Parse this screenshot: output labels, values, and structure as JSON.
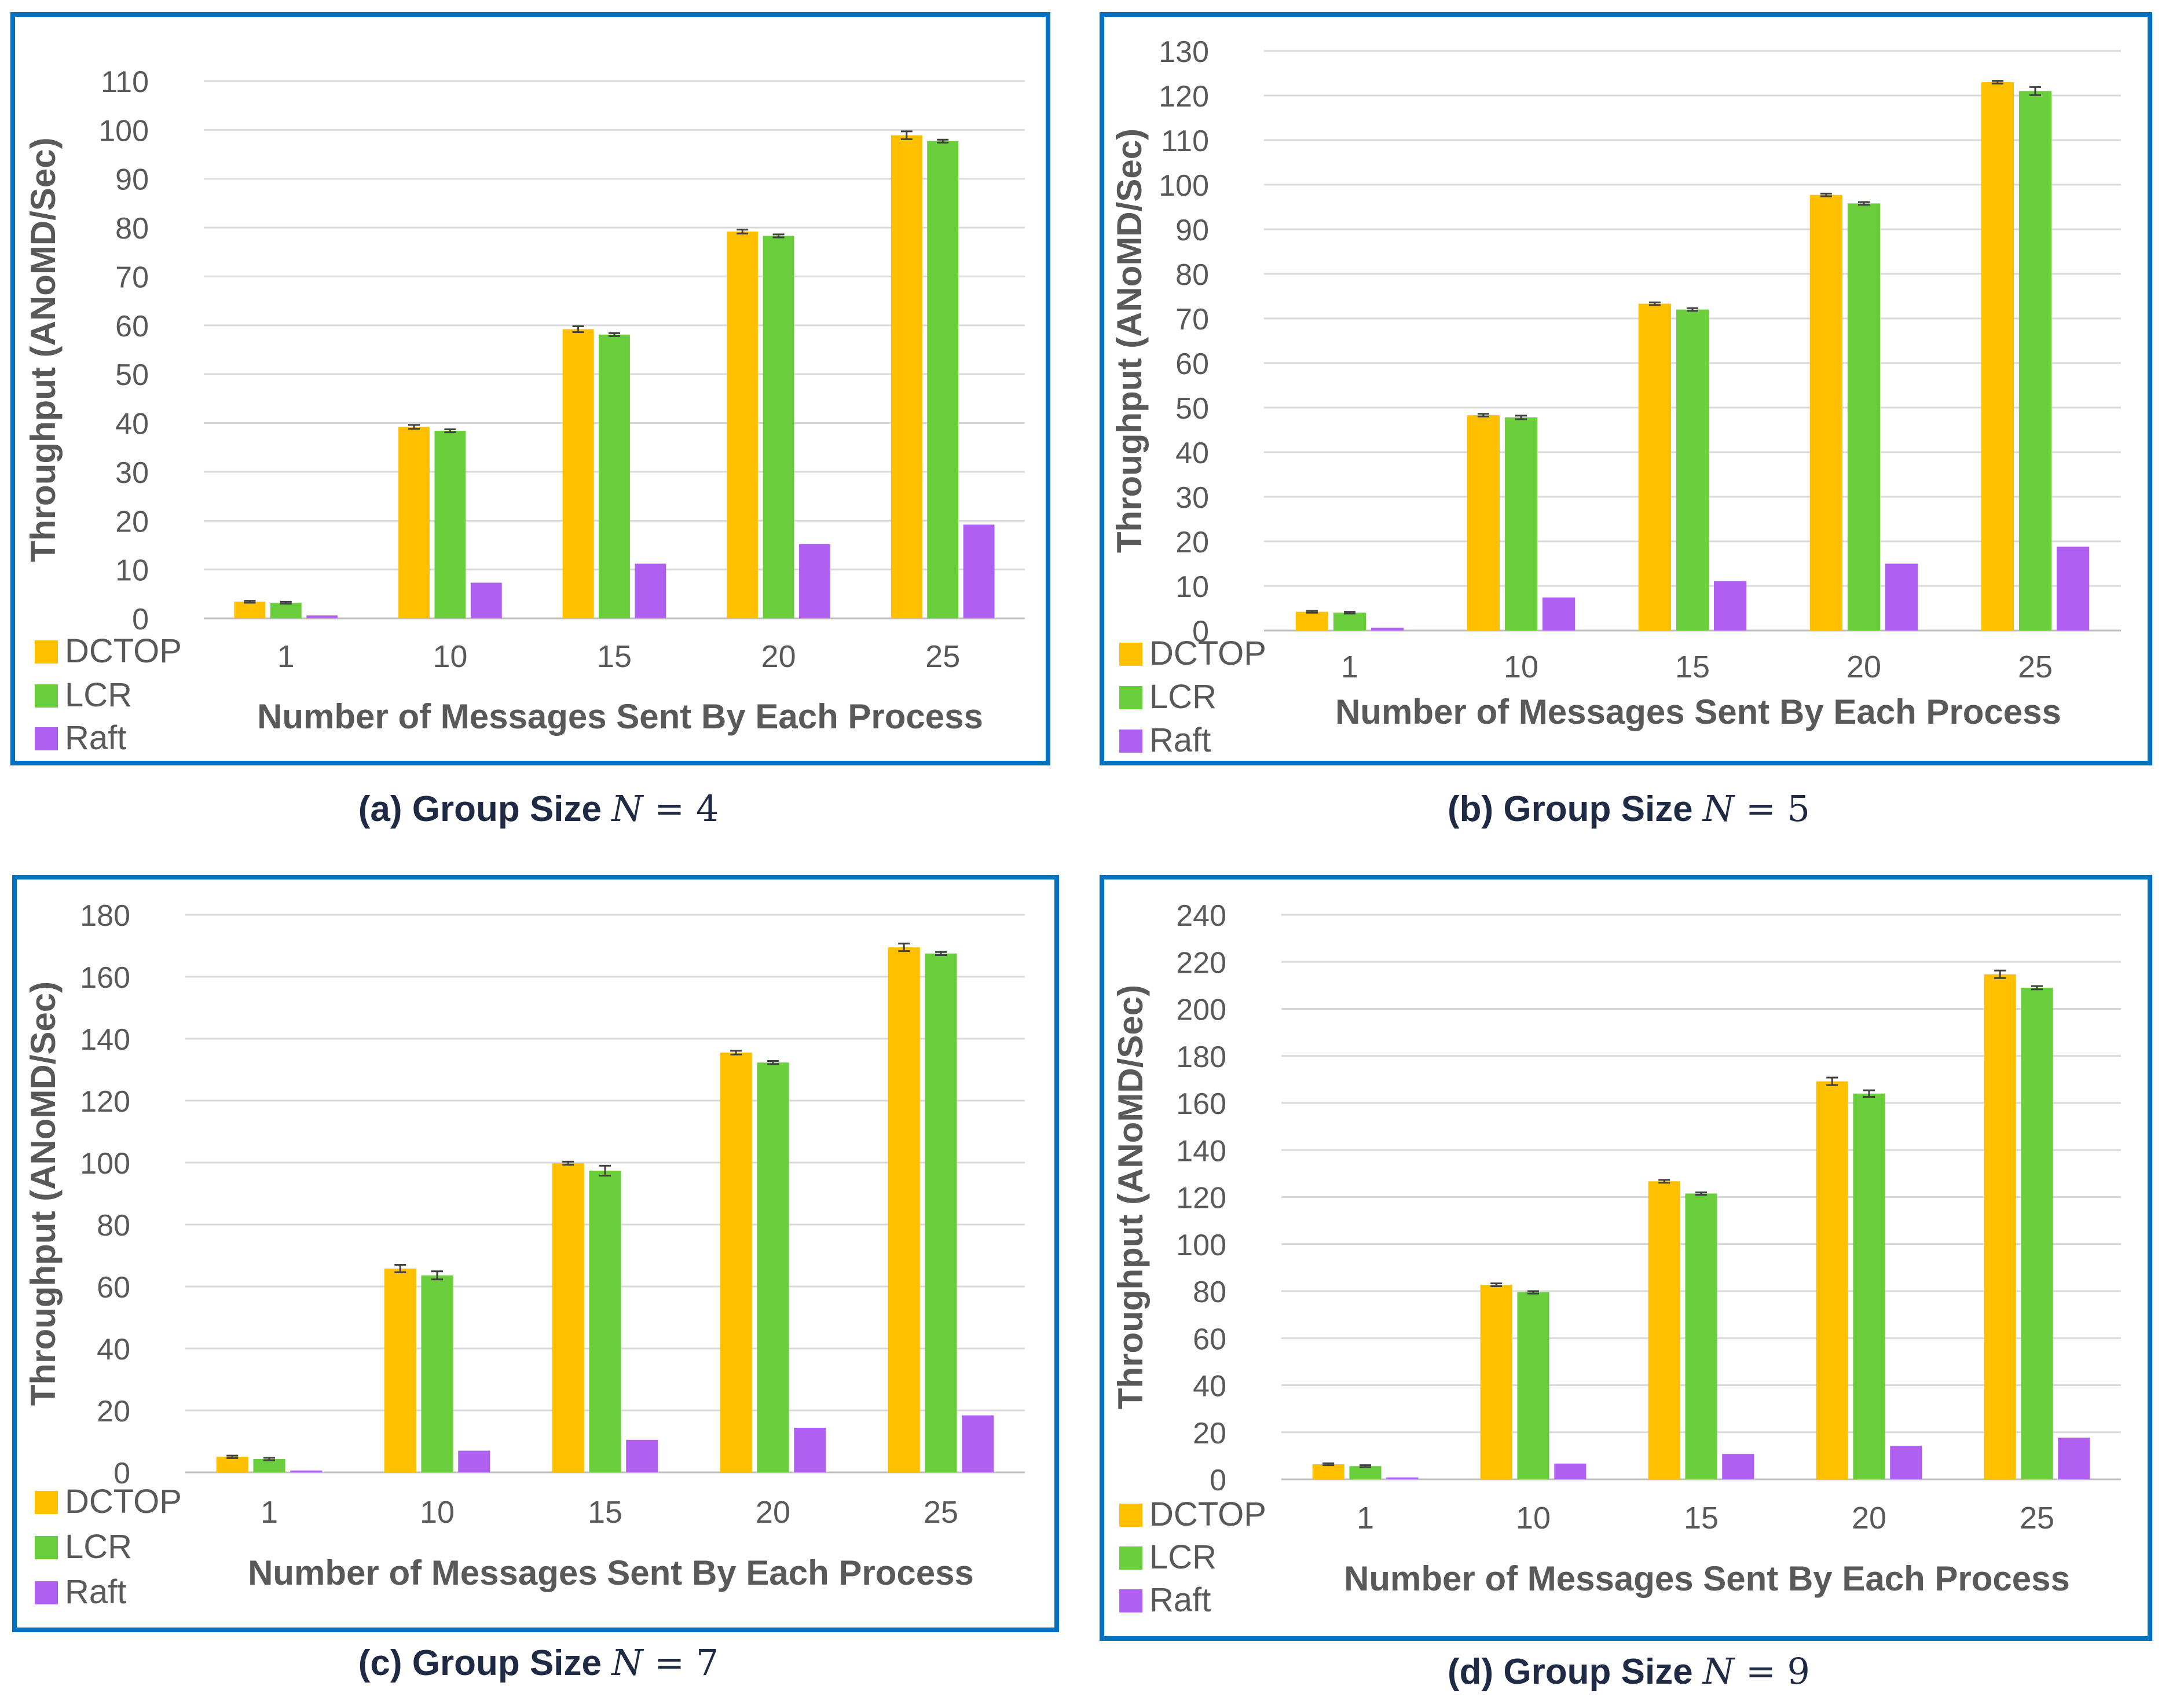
{
  "colors": {
    "DCTOP": "#FFC000",
    "LCR": "#6ACD3C",
    "Raft": "#B060F0",
    "border": "#0070C0",
    "grid": "#D9D9D9",
    "text": "#595959"
  },
  "chart_data": [
    {
      "type": "bar",
      "caption_prefix": "(a) Group Size ",
      "caption_var": "N",
      "caption_eq": " = ",
      "caption_num": "4",
      "xlabel": "Number of Messages Sent By Each Process",
      "ylabel": "Throughput (ANoMD/Sec)",
      "categories": [
        "1",
        "10",
        "15",
        "20",
        "25"
      ],
      "ylim": [
        0,
        110
      ],
      "yticks": [
        "0",
        "10",
        "20",
        "30",
        "40",
        "50",
        "60",
        "70",
        "80",
        "90",
        "100",
        "110"
      ],
      "yticks_values": [
        0,
        10,
        20,
        30,
        40,
        50,
        60,
        70,
        80,
        90,
        100,
        110
      ],
      "legend": [
        "DCTOP",
        "LCR",
        "Raft"
      ],
      "series": [
        {
          "name": "DCTOP",
          "values": [
            3.4,
            39.2,
            59.2,
            79.2,
            98.9
          ],
          "errors": [
            0.2,
            0.4,
            0.6,
            0.4,
            0.8
          ]
        },
        {
          "name": "LCR",
          "values": [
            3.2,
            38.4,
            58.1,
            78.3,
            97.7
          ],
          "errors": [
            0.2,
            0.3,
            0.3,
            0.3,
            0.3
          ]
        },
        {
          "name": "Raft",
          "values": [
            0.6,
            7.3,
            11.2,
            15.2,
            19.2
          ],
          "errors": [
            0,
            0,
            0,
            0,
            0
          ]
        }
      ]
    },
    {
      "type": "bar",
      "caption_prefix": "(b) Group Size ",
      "caption_var": "N",
      "caption_eq": " = ",
      "caption_num": "5",
      "xlabel": "Number of Messages Sent By Each Process",
      "ylabel": "Throughput (ANoMD/Sec)",
      "categories": [
        "1",
        "10",
        "15",
        "20",
        "25"
      ],
      "ylim": [
        0,
        130
      ],
      "yticks": [
        "0",
        "10",
        "20",
        "30",
        "40",
        "50",
        "60",
        "70",
        "80",
        "90",
        "100",
        "110",
        "120",
        "130"
      ],
      "yticks_values": [
        0,
        10,
        20,
        30,
        40,
        50,
        60,
        70,
        80,
        90,
        100,
        110,
        120,
        130
      ],
      "legend": [
        "DCTOP",
        "LCR",
        "Raft"
      ],
      "series": [
        {
          "name": "DCTOP",
          "values": [
            4.2,
            48.3,
            73.3,
            97.7,
            123.0
          ],
          "errors": [
            0.2,
            0.3,
            0.3,
            0.3,
            0.3
          ]
        },
        {
          "name": "LCR",
          "values": [
            4.0,
            47.8,
            72.0,
            95.8,
            121.0
          ],
          "errors": [
            0.2,
            0.4,
            0.3,
            0.3,
            0.9
          ]
        },
        {
          "name": "Raft",
          "values": [
            0.6,
            7.4,
            11.1,
            15.0,
            18.8
          ],
          "errors": [
            0,
            0,
            0,
            0,
            0
          ]
        }
      ]
    },
    {
      "type": "bar",
      "caption_prefix": "(c) Group Size ",
      "caption_var": "N",
      "caption_eq": " = ",
      "caption_num": "7",
      "xlabel": "Number of Messages Sent By Each Process",
      "ylabel": "Throughput (ANoMD/Sec)",
      "categories": [
        "1",
        "10",
        "15",
        "20",
        "25"
      ],
      "ylim": [
        0,
        180
      ],
      "yticks": [
        "0",
        "20",
        "40",
        "60",
        "80",
        "100",
        "120",
        "140",
        "160",
        "180"
      ],
      "yticks_values": [
        0,
        20,
        40,
        60,
        80,
        100,
        120,
        140,
        160,
        180
      ],
      "legend": [
        "DCTOP",
        "LCR",
        "Raft"
      ],
      "series": [
        {
          "name": "DCTOP",
          "values": [
            5.0,
            65.8,
            99.8,
            135.5,
            169.5
          ],
          "errors": [
            0.4,
            1.2,
            0.5,
            0.6,
            1.2
          ]
        },
        {
          "name": "LCR",
          "values": [
            4.3,
            63.6,
            97.4,
            132.3,
            167.5
          ],
          "errors": [
            0.4,
            1.3,
            1.6,
            0.5,
            0.5
          ]
        },
        {
          "name": "Raft",
          "values": [
            0.6,
            7.0,
            10.5,
            14.4,
            18.4
          ],
          "errors": [
            0,
            0,
            0,
            0,
            0
          ]
        }
      ]
    },
    {
      "type": "bar",
      "caption_prefix": "(d) Group Size ",
      "caption_var": "N",
      "caption_eq": " = ",
      "caption_num": "9",
      "xlabel": "Number of Messages Sent By Each Process",
      "ylabel": "Throughput (ANoMD/Sec)",
      "categories": [
        "1",
        "10",
        "15",
        "20",
        "25"
      ],
      "ylim": [
        0,
        240
      ],
      "yticks": [
        "0",
        "20",
        "40",
        "60",
        "80",
        "100",
        "120",
        "140",
        "160",
        "180",
        "200",
        "220",
        "240"
      ],
      "yticks_values": [
        0,
        20,
        40,
        60,
        80,
        100,
        120,
        140,
        160,
        180,
        200,
        220,
        240
      ],
      "legend": [
        "DCTOP",
        "LCR",
        "Raft"
      ],
      "series": [
        {
          "name": "DCTOP",
          "values": [
            6.4,
            82.7,
            126.7,
            169.2,
            214.7
          ],
          "errors": [
            0.4,
            0.6,
            0.6,
            1.6,
            1.6
          ]
        },
        {
          "name": "LCR",
          "values": [
            5.6,
            79.5,
            121.5,
            164.0,
            209.0
          ],
          "errors": [
            0.4,
            0.5,
            0.5,
            1.4,
            0.7
          ]
        },
        {
          "name": "Raft",
          "values": [
            0.8,
            6.7,
            10.8,
            14.2,
            17.7
          ],
          "errors": [
            0,
            0,
            0,
            0,
            0
          ]
        }
      ]
    }
  ]
}
